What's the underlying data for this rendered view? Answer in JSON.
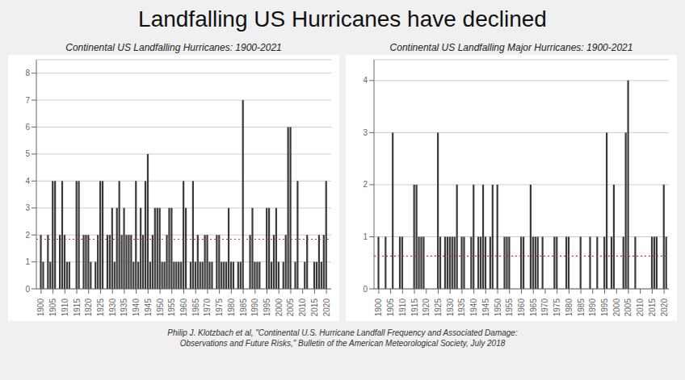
{
  "title": "Landfalling US Hurricanes have declined",
  "annotations": [
    "Philip J. Klotzbach et al, \"Continental U.S. Hurricane Landfall Frequency and Associated Damage:\nObservations and Future Risks,\" Bulletin of the American Meteorological Society, July 2018"
  ],
  "chart_data": [
    {
      "type": "bar",
      "title": "Continental US Landfalling Hurricanes: 1900-2021",
      "x": [
        1900,
        1901,
        1902,
        1903,
        1904,
        1905,
        1906,
        1907,
        1908,
        1909,
        1910,
        1911,
        1912,
        1913,
        1914,
        1915,
        1916,
        1917,
        1918,
        1919,
        1920,
        1921,
        1922,
        1923,
        1924,
        1925,
        1926,
        1927,
        1928,
        1929,
        1930,
        1931,
        1932,
        1933,
        1934,
        1935,
        1936,
        1937,
        1938,
        1939,
        1940,
        1941,
        1942,
        1943,
        1944,
        1945,
        1946,
        1947,
        1948,
        1949,
        1950,
        1951,
        1952,
        1953,
        1954,
        1955,
        1956,
        1957,
        1958,
        1959,
        1960,
        1961,
        1962,
        1963,
        1964,
        1965,
        1966,
        1967,
        1968,
        1969,
        1970,
        1971,
        1972,
        1973,
        1974,
        1975,
        1976,
        1977,
        1978,
        1979,
        1980,
        1981,
        1982,
        1983,
        1984,
        1985,
        1986,
        1987,
        1988,
        1989,
        1990,
        1991,
        1992,
        1993,
        1994,
        1995,
        1996,
        1997,
        1998,
        1999,
        2000,
        2001,
        2002,
        2003,
        2004,
        2005,
        2006,
        2007,
        2008,
        2009,
        2010,
        2011,
        2012,
        2013,
        2014,
        2015,
        2016,
        2017,
        2018,
        2019,
        2020,
        2021
      ],
      "values": [
        2,
        1,
        0,
        2,
        1,
        4,
        4,
        0,
        2,
        4,
        2,
        1,
        1,
        0,
        0,
        4,
        4,
        0,
        2,
        2,
        2,
        1,
        0,
        1,
        2,
        4,
        4,
        0,
        2,
        2,
        3,
        1,
        3,
        4,
        2,
        3,
        2,
        2,
        2,
        1,
        4,
        1,
        3,
        2,
        4,
        5,
        1,
        2,
        3,
        3,
        3,
        1,
        1,
        2,
        3,
        3,
        1,
        1,
        1,
        1,
        4,
        3,
        0,
        1,
        4,
        1,
        2,
        1,
        1,
        2,
        2,
        1,
        1,
        0,
        2,
        2,
        1,
        1,
        1,
        3,
        1,
        1,
        0,
        1,
        1,
        7,
        0,
        0,
        2,
        3,
        1,
        1,
        1,
        0,
        0,
        3,
        3,
        1,
        2,
        3,
        1,
        0,
        1,
        2,
        6,
        6,
        0,
        1,
        4,
        0,
        0,
        1,
        2,
        0,
        0,
        1,
        1,
        2,
        1,
        2,
        4,
        0
      ],
      "color": "#3a3a3a",
      "xlim": [
        1898,
        2022
      ],
      "xticks": [
        1900,
        1905,
        1910,
        1915,
        1920,
        1925,
        1930,
        1935,
        1940,
        1945,
        1950,
        1955,
        1960,
        1965,
        1970,
        1975,
        1980,
        1985,
        1990,
        1995,
        2000,
        2005,
        2010,
        2015,
        2020
      ],
      "ylim": [
        0,
        8.5
      ],
      "yticks": [
        0,
        1,
        2,
        3,
        4,
        5,
        6,
        7,
        8
      ],
      "grid": true,
      "reference_line": {
        "value": 1.84,
        "color": "#c0392b",
        "line_style": "dotted"
      }
    },
    {
      "type": "bar",
      "title": "Continental US Landfalling Major Hurricanes: 1900-2021",
      "x": [
        1900,
        1901,
        1902,
        1903,
        1904,
        1905,
        1906,
        1907,
        1908,
        1909,
        1910,
        1911,
        1912,
        1913,
        1914,
        1915,
        1916,
        1917,
        1918,
        1919,
        1920,
        1921,
        1922,
        1923,
        1924,
        1925,
        1926,
        1927,
        1928,
        1929,
        1930,
        1931,
        1932,
        1933,
        1934,
        1935,
        1936,
        1937,
        1938,
        1939,
        1940,
        1941,
        1942,
        1943,
        1944,
        1945,
        1946,
        1947,
        1948,
        1949,
        1950,
        1951,
        1952,
        1953,
        1954,
        1955,
        1956,
        1957,
        1958,
        1959,
        1960,
        1961,
        1962,
        1963,
        1964,
        1965,
        1966,
        1967,
        1968,
        1969,
        1970,
        1971,
        1972,
        1973,
        1974,
        1975,
        1976,
        1977,
        1978,
        1979,
        1980,
        1981,
        1982,
        1983,
        1984,
        1985,
        1986,
        1987,
        1988,
        1989,
        1990,
        1991,
        1992,
        1993,
        1994,
        1995,
        1996,
        1997,
        1998,
        1999,
        2000,
        2001,
        2002,
        2003,
        2004,
        2005,
        2006,
        2007,
        2008,
        2009,
        2010,
        2011,
        2012,
        2013,
        2014,
        2015,
        2016,
        2017,
        2018,
        2019,
        2020,
        2021
      ],
      "values": [
        1,
        0,
        0,
        1,
        0,
        0,
        3,
        0,
        0,
        1,
        1,
        0,
        0,
        0,
        0,
        2,
        2,
        1,
        1,
        1,
        0,
        0,
        0,
        0,
        0,
        3,
        1,
        0,
        1,
        1,
        1,
        1,
        1,
        2,
        0,
        1,
        1,
        0,
        0,
        1,
        2,
        0,
        1,
        1,
        2,
        1,
        0,
        1,
        2,
        0,
        2,
        0,
        0,
        1,
        1,
        1,
        0,
        0,
        0,
        0,
        1,
        1,
        0,
        0,
        2,
        1,
        1,
        1,
        0,
        1,
        0,
        0,
        0,
        0,
        1,
        1,
        0,
        0,
        0,
        1,
        1,
        0,
        0,
        0,
        0,
        1,
        0,
        0,
        0,
        1,
        0,
        0,
        1,
        0,
        0,
        1,
        3,
        0,
        1,
        2,
        0,
        0,
        0,
        1,
        3,
        4,
        0,
        0,
        1,
        0,
        0,
        0,
        0,
        0,
        0,
        1,
        1,
        1,
        0,
        0,
        2,
        1
      ],
      "color": "#3a3a3a",
      "xlim": [
        1898,
        2022
      ],
      "xticks": [
        1900,
        1905,
        1910,
        1915,
        1920,
        1925,
        1930,
        1935,
        1940,
        1945,
        1950,
        1955,
        1960,
        1965,
        1970,
        1975,
        1980,
        1985,
        1990,
        1995,
        2000,
        2005,
        2010,
        2015,
        2020
      ],
      "ylim": [
        0,
        4.4
      ],
      "yticks": [
        0,
        1,
        2,
        3,
        4
      ],
      "grid": true,
      "reference_line": {
        "value": 0.63,
        "color": "#c0392b",
        "line_style": "dotted"
      }
    }
  ]
}
